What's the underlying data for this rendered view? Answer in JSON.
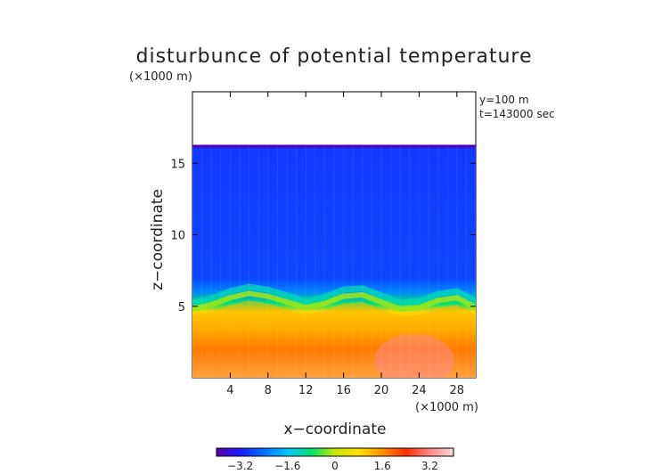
{
  "chart_data": {
    "type": "heatmap",
    "title": "disturbunce of potential temperature",
    "unit_note_y": "(×1000 m)",
    "unit_note_x": "(×1000 m)",
    "info_lines": [
      "y=100 m",
      "t=143000 sec"
    ],
    "xlabel": "x−coordinate",
    "ylabel": "z−coordinate",
    "xlim": [
      0,
      30
    ],
    "ylim": [
      0,
      20
    ],
    "x_ticks": [
      4,
      8,
      12,
      16,
      20,
      24,
      28
    ],
    "y_ticks": [
      5,
      10,
      15
    ],
    "domain_top": 16.2,
    "colorbar": {
      "range": [
        -4,
        4
      ],
      "ticks": [
        "−3.2",
        "−1.6",
        "0",
        "1.6",
        "3.2"
      ],
      "tick_values": [
        -3.2,
        -1.6,
        0,
        1.6,
        3.2
      ],
      "colors": [
        "#5a00a8",
        "#1a1aff",
        "#0070ff",
        "#00c8ff",
        "#00e070",
        "#c8e800",
        "#ffe000",
        "#ff9000",
        "#ff3000",
        "#ff8888",
        "#ffd8d8"
      ]
    },
    "field_profile": [
      {
        "z": 0.0,
        "value": 3.2
      },
      {
        "z": 2.0,
        "value": 2.4
      },
      {
        "z": 3.5,
        "value": 1.4
      },
      {
        "z": 4.6,
        "value": 0.9
      },
      {
        "z": 5.2,
        "value": -0.8
      },
      {
        "z": 6.0,
        "value": -2.2
      },
      {
        "z": 7.0,
        "value": -2.8
      },
      {
        "z": 16.0,
        "value": -2.9
      },
      {
        "z": 16.2,
        "value": -3.8
      }
    ],
    "interface_heights": {
      "x": [
        0,
        2,
        4,
        6,
        8,
        10,
        12,
        14,
        16,
        18,
        20,
        22,
        24,
        26,
        28,
        30
      ],
      "z": [
        4.8,
        5.1,
        5.6,
        5.9,
        5.7,
        5.3,
        4.9,
        5.2,
        5.7,
        5.8,
        5.3,
        4.8,
        4.9,
        5.4,
        5.6,
        4.9
      ]
    }
  }
}
